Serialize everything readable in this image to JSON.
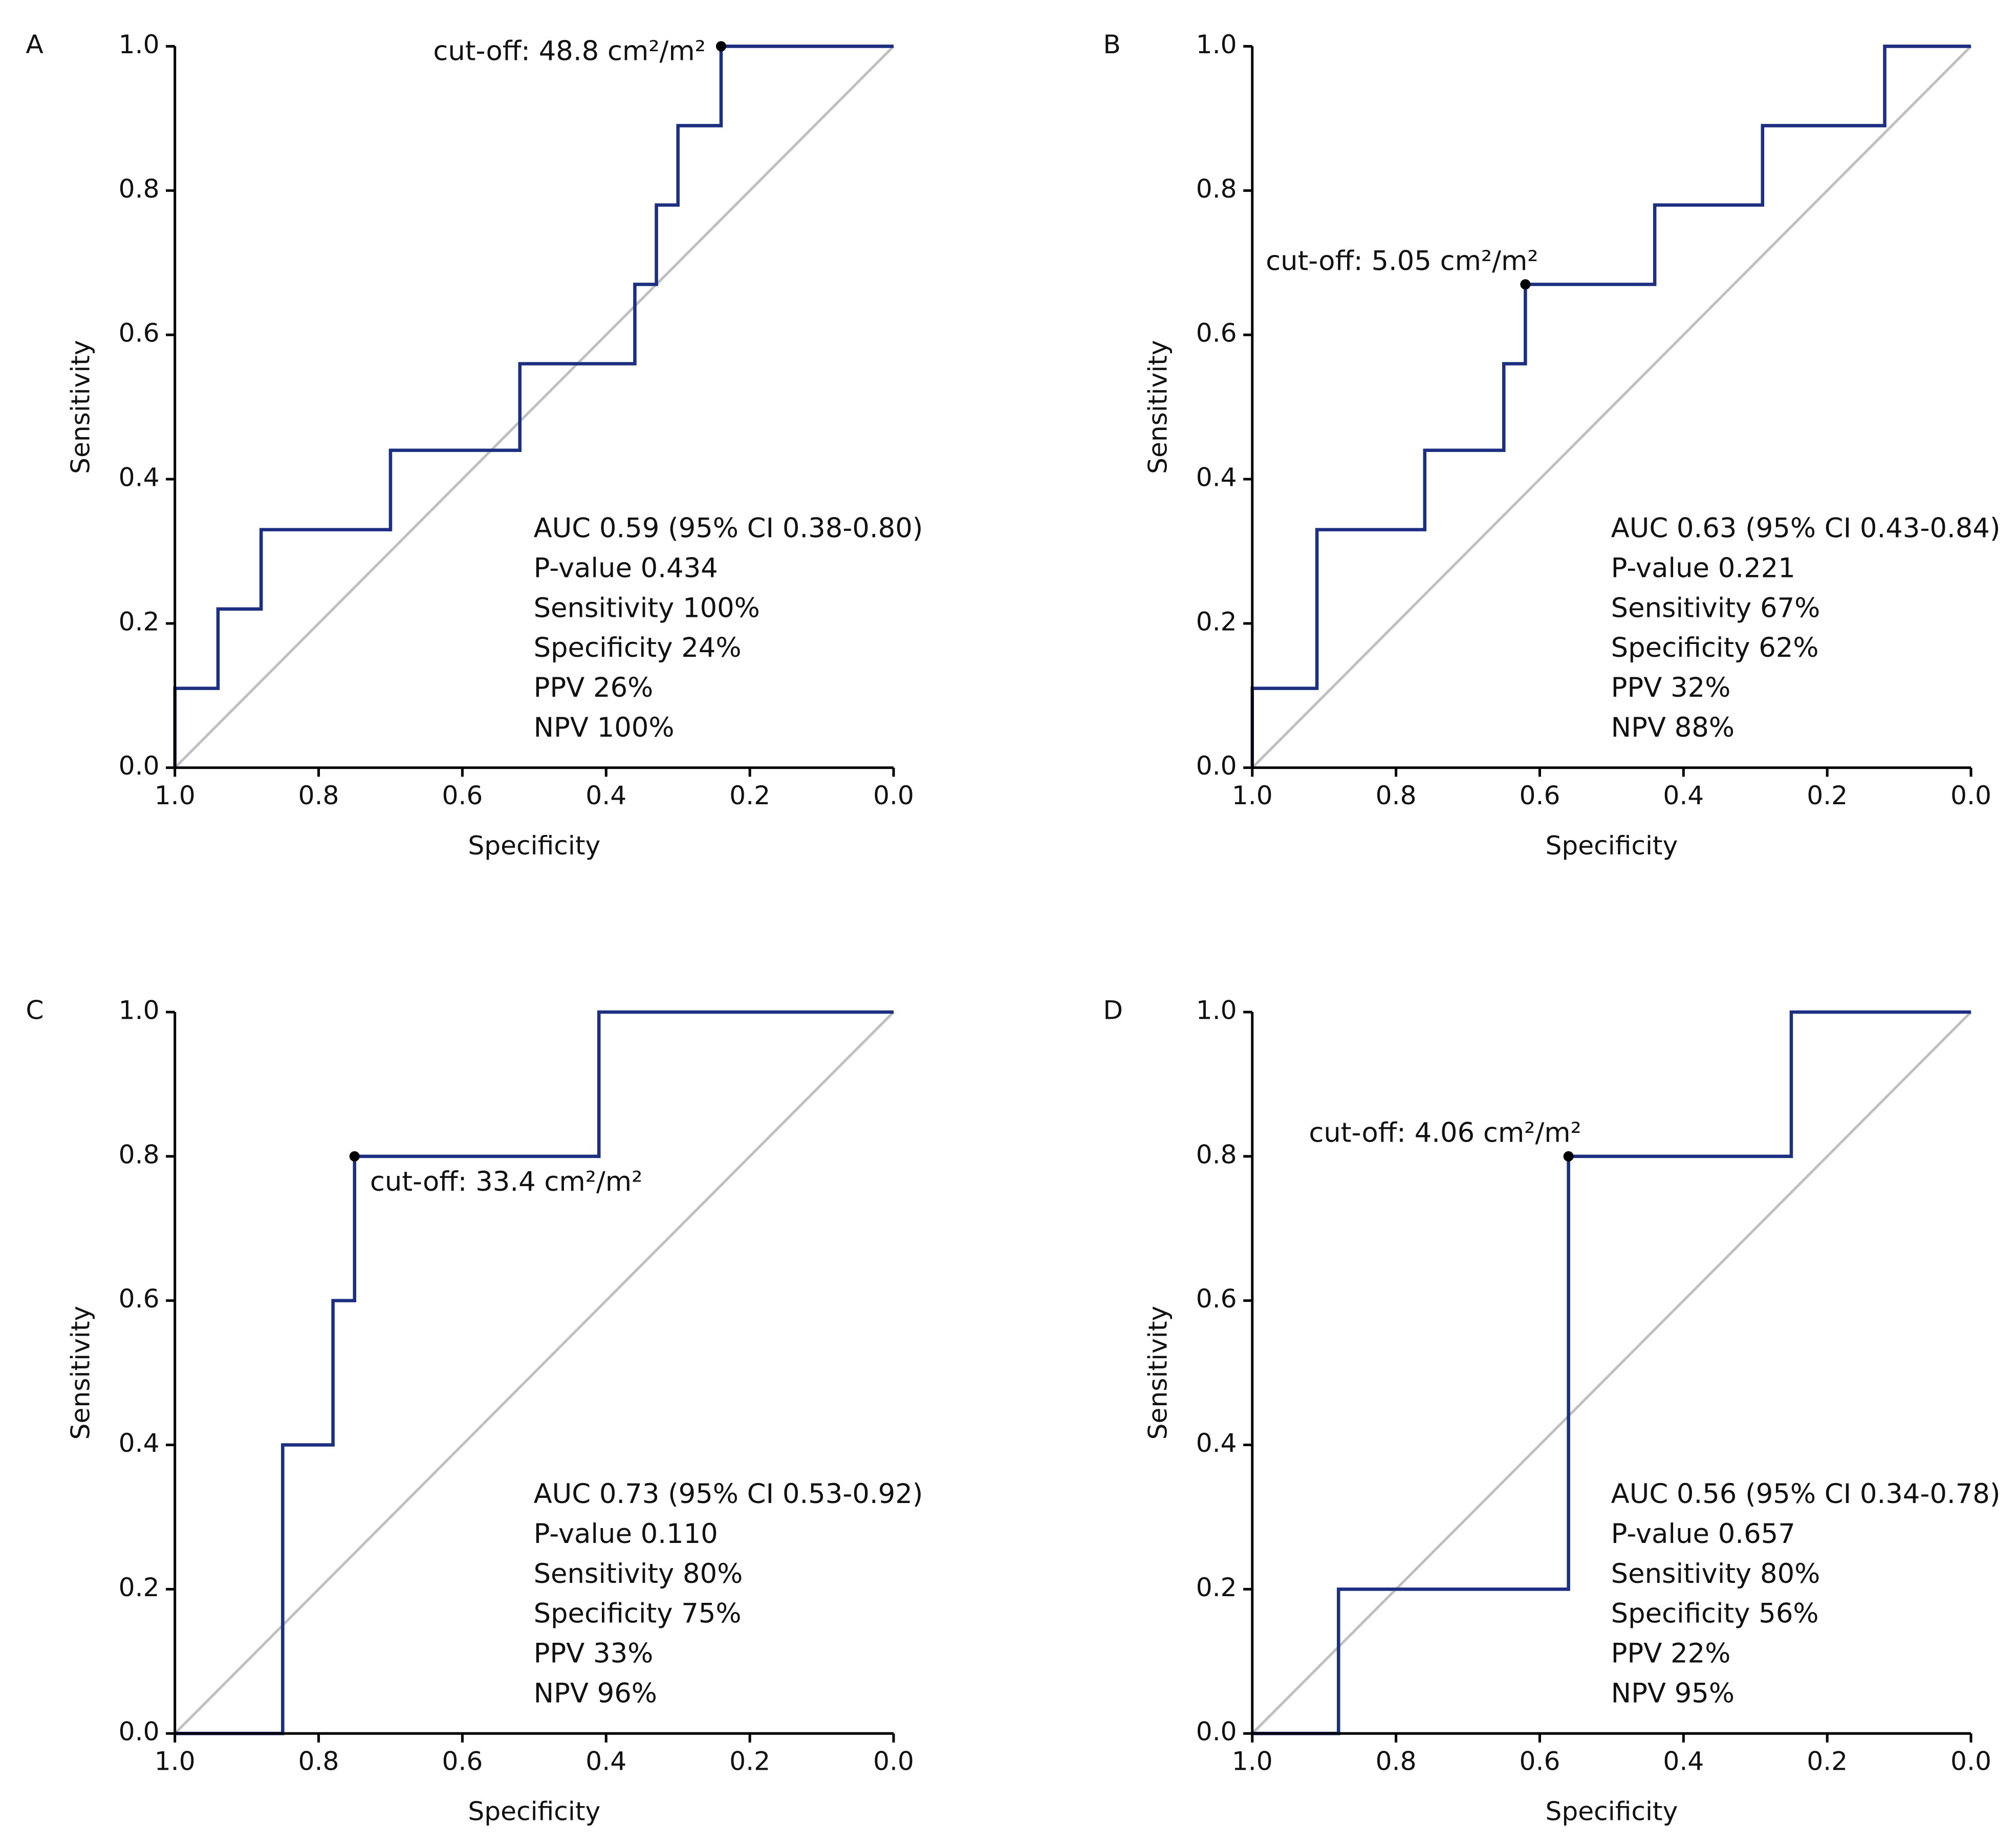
{
  "chart_data": [
    {
      "type": "line",
      "panel": "A",
      "xlabel": "Specificity",
      "ylabel": "Sensitivity",
      "xlim": [
        1,
        0
      ],
      "ylim": [
        0,
        1
      ],
      "xticks": [
        {
          "value": 1,
          "label": "1.0"
        },
        0.8,
        0.6,
        0.4,
        0.2,
        {
          "value": 0,
          "label": "0.0"
        }
      ],
      "yticks": [
        {
          "value": 0,
          "label": "0.0"
        },
        0.2,
        0.4,
        0.6,
        0.8,
        {
          "value": 1,
          "label": "1.0"
        }
      ],
      "reference_line_color": "#bfbfbf",
      "series": [
        {
          "color": "#1c2f80",
          "x": [
            1,
            1,
            0.94,
            0.94,
            0.88,
            0.88,
            0.7,
            0.7,
            0.52,
            0.52,
            0.36,
            0.36,
            0.33,
            0.33,
            0.3,
            0.3,
            0.24,
            0.24,
            0
          ],
          "values": [
            0,
            0.11,
            0.11,
            0.22,
            0.22,
            0.33,
            0.33,
            0.44,
            0.44,
            0.56,
            0.56,
            0.67,
            0.67,
            0.78,
            0.78,
            0.89,
            0.89,
            1,
            1
          ]
        }
      ],
      "cutoff": {
        "x": 0.24,
        "y": 1,
        "label": "cut-off: 48.8 cm²/m²",
        "label_position": "left"
      },
      "stats": [
        "AUC 0.59 (95% CI 0.38-0.80)",
        "P-value 0.434",
        "Sensitivity 100%",
        "Specificity 24%",
        "PPV 26%",
        "NPV 100%"
      ]
    },
    {
      "type": "line",
      "panel": "B",
      "xlabel": "Specificity",
      "ylabel": "Sensitivity",
      "xlim": [
        1,
        0
      ],
      "ylim": [
        0,
        1
      ],
      "xticks": [
        {
          "value": 1,
          "label": "1.0"
        },
        0.8,
        0.6,
        0.4,
        0.2,
        {
          "value": 0,
          "label": "0.0"
        }
      ],
      "yticks": [
        {
          "value": 0,
          "label": "0.0"
        },
        0.2,
        0.4,
        0.6,
        0.8,
        {
          "value": 1,
          "label": "1.0"
        }
      ],
      "reference_line_color": "#bfbfbf",
      "series": [
        {
          "color": "#1c2f80",
          "x": [
            1,
            1,
            0.91,
            0.91,
            0.76,
            0.76,
            0.65,
            0.65,
            0.62,
            0.62,
            0.44,
            0.44,
            0.29,
            0.29,
            0.12,
            0.12,
            0
          ],
          "values": [
            0,
            0.11,
            0.11,
            0.33,
            0.33,
            0.44,
            0.44,
            0.56,
            0.56,
            0.67,
            0.67,
            0.78,
            0.78,
            0.89,
            0.89,
            1,
            1
          ]
        }
      ],
      "cutoff": {
        "x": 0.62,
        "y": 0.67,
        "label": "cut-off: 5.05 cm²/m²",
        "label_position": "above"
      },
      "stats": [
        "AUC 0.63 (95% CI 0.43-0.84)",
        "P-value 0.221",
        "Sensitivity 67%",
        "Specificity 62%",
        "PPV 32%",
        "NPV 88%"
      ]
    },
    {
      "type": "line",
      "panel": "C",
      "xlabel": "Specificity",
      "ylabel": "Sensitivity",
      "xlim": [
        1,
        0
      ],
      "ylim": [
        0,
        1
      ],
      "xticks": [
        {
          "value": 1,
          "label": "1.0"
        },
        0.8,
        0.6,
        0.4,
        0.2,
        {
          "value": 0,
          "label": "0.0"
        }
      ],
      "yticks": [
        {
          "value": 0,
          "label": "0.0"
        },
        0.2,
        0.4,
        0.6,
        0.8,
        {
          "value": 1,
          "label": "1.0"
        }
      ],
      "reference_line_color": "#bfbfbf",
      "series": [
        {
          "color": "#1c2f80",
          "x": [
            1,
            0.85,
            0.85,
            0.78,
            0.78,
            0.75,
            0.75,
            0.41,
            0.41,
            0
          ],
          "values": [
            0,
            0,
            0.4,
            0.4,
            0.6,
            0.6,
            0.8,
            0.8,
            1,
            1
          ]
        }
      ],
      "cutoff": {
        "x": 0.75,
        "y": 0.8,
        "label": "cut-off: 33.4 cm²/m²",
        "label_position": "below-right"
      },
      "stats": [
        "AUC 0.73 (95% CI 0.53-0.92)",
        "P-value 0.110",
        "Sensitivity 80%",
        "Specificity 75%",
        "PPV 33%",
        "NPV 96%"
      ]
    },
    {
      "type": "line",
      "panel": "D",
      "xlabel": "Specificity",
      "ylabel": "Sensitivity",
      "xlim": [
        1,
        0
      ],
      "ylim": [
        0,
        1
      ],
      "xticks": [
        {
          "value": 1,
          "label": "1.0"
        },
        0.8,
        0.6,
        0.4,
        0.2,
        {
          "value": 0,
          "label": "0.0"
        }
      ],
      "yticks": [
        {
          "value": 0,
          "label": "0.0"
        },
        0.2,
        0.4,
        0.6,
        0.8,
        {
          "value": 1,
          "label": "1.0"
        }
      ],
      "reference_line_color": "#bfbfbf",
      "series": [
        {
          "color": "#1c2f80",
          "x": [
            1,
            0.88,
            0.88,
            0.56,
            0.56,
            0.25,
            0.25,
            0
          ],
          "values": [
            0,
            0,
            0.2,
            0.2,
            0.8,
            0.8,
            1,
            1
          ]
        }
      ],
      "cutoff": {
        "x": 0.56,
        "y": 0.8,
        "label": "cut-off: 4.06 cm²/m²",
        "label_position": "above"
      },
      "stats": [
        "AUC 0.56 (95% CI 0.34-0.78)",
        "P-value 0.657",
        "Sensitivity 80%",
        "Specificity 56%",
        "PPV 22%",
        "NPV 95%"
      ]
    }
  ]
}
